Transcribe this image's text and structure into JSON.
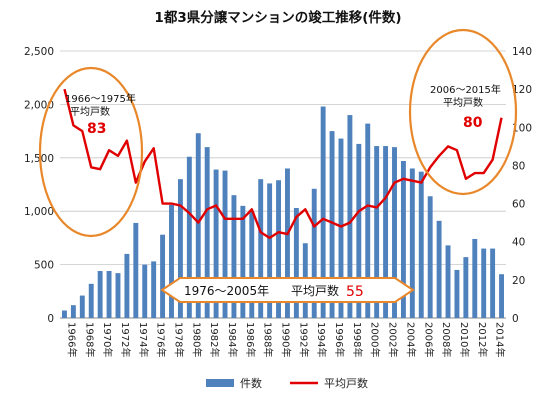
{
  "chart_data": {
    "type": "bar",
    "title": "1都3県分譲マンションの竣工推移(件数)",
    "years": [
      1966,
      1967,
      1968,
      1969,
      1970,
      1971,
      1972,
      1973,
      1974,
      1975,
      1976,
      1977,
      1978,
      1979,
      1980,
      1981,
      1982,
      1983,
      1984,
      1985,
      1986,
      1987,
      1988,
      1989,
      1990,
      1991,
      1992,
      1993,
      1994,
      1995,
      1996,
      1997,
      1998,
      1999,
      2000,
      2001,
      2002,
      2003,
      2004,
      2005,
      2006,
      2007,
      2008,
      2009,
      2010,
      2011,
      2012,
      2013,
      2014,
      2015
    ],
    "x_tick_labels": [
      "1966年",
      "1968年",
      "1970年",
      "1972年",
      "1974年",
      "1976年",
      "1978年",
      "1980年",
      "1982年",
      "1984年",
      "1986年",
      "1988年",
      "1990年",
      "1992年",
      "1994年",
      "1996年",
      "1998年",
      "2000年",
      "2002年",
      "2004年",
      "2006年",
      "2008年",
      "2010年",
      "2012年",
      "2014年"
    ],
    "series": [
      {
        "name": "件数",
        "type": "bar",
        "axis": "left",
        "color": "#4f81bd",
        "values": [
          70,
          120,
          210,
          320,
          440,
          440,
          420,
          600,
          890,
          500,
          530,
          780,
          1060,
          1300,
          1510,
          1730,
          1600,
          1390,
          1380,
          1150,
          1050,
          1000,
          1300,
          1260,
          1290,
          1400,
          1030,
          700,
          1210,
          1980,
          1750,
          1680,
          1900,
          1630,
          1820,
          1610,
          1610,
          1600,
          1470,
          1400,
          1370,
          1140,
          910,
          680,
          450,
          570,
          740,
          650,
          650,
          410
        ]
      },
      {
        "name": "平均戸数",
        "type": "line",
        "axis": "right",
        "color": "#e00000",
        "values": [
          120,
          101,
          98,
          79,
          78,
          88,
          85,
          93,
          71,
          82,
          89,
          60,
          60,
          59,
          55,
          50,
          57,
          59,
          52,
          52,
          52,
          57,
          45,
          42,
          45,
          44,
          53,
          57,
          48,
          52,
          50,
          48,
          50,
          56,
          59,
          58,
          63,
          71,
          73,
          72,
          71,
          79,
          85,
          90,
          88,
          73,
          76,
          76,
          83,
          105
        ]
      }
    ],
    "left_axis": {
      "ylim": [
        0,
        2500
      ],
      "ticks": [
        "0",
        "500",
        "1,000",
        "1,500",
        "2,000",
        "2,500"
      ]
    },
    "right_axis": {
      "ylim": [
        0,
        140
      ],
      "ticks": [
        "0",
        "20",
        "40",
        "60",
        "80",
        "100",
        "120",
        "140"
      ]
    },
    "legend": {
      "position": "bottom",
      "items": [
        "件数",
        "平均戸数"
      ]
    },
    "annotations": {
      "left_period": "1966～1975年",
      "left_label": "平均戸数",
      "left_value": "83",
      "right_period": "2006～2015年",
      "right_label": "平均戸数",
      "right_value": "80",
      "middle_period": "1976～2005年",
      "middle_label": "平均戸数",
      "middle_value": "55"
    },
    "colors": {
      "ellipse": "#e8882a",
      "band_fill": "#ffffff",
      "band_stroke": "#e8882a"
    }
  }
}
